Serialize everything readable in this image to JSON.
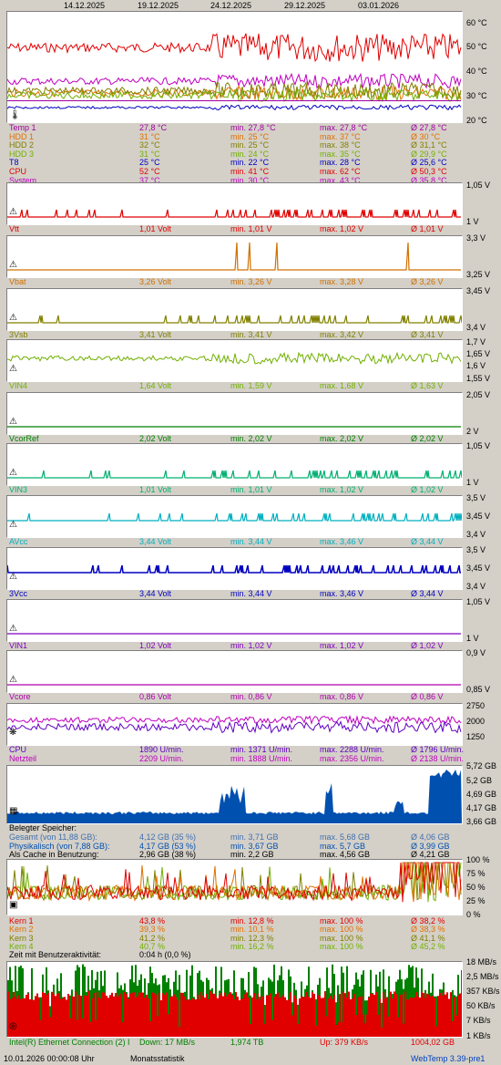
{
  "dates": [
    "14.12.2025",
    "19.12.2025",
    "24.12.2025",
    "29.12.2025",
    "03.01.2026"
  ],
  "temp": {
    "ticks": [
      "60 °C",
      "50 °C",
      "40 °C",
      "30 °C",
      "20 °C"
    ],
    "rows": [
      {
        "name": "Temp 1",
        "cur": "27,8 °C",
        "min": "min. 27,8 °C",
        "max": "max. 27,8 °C",
        "avg": "Ø 27,8 °C",
        "color": "#a000a0"
      },
      {
        "name": "HDD 1",
        "cur": "31 °C",
        "min": "min. 25 °C",
        "max": "max. 37 °C",
        "avg": "Ø 30 °C",
        "color": "#e07000"
      },
      {
        "name": "HDD 2",
        "cur": "32 °C",
        "min": "min. 25 °C",
        "max": "max. 38 °C",
        "avg": "Ø 31,1 °C",
        "color": "#808000"
      },
      {
        "name": "HDD 3",
        "cur": "31 °C",
        "min": "min. 24 °C",
        "max": "max. 35 °C",
        "avg": "Ø 29,9 °C",
        "color": "#70b000"
      },
      {
        "name": "T8",
        "cur": "25 °C",
        "min": "min. 22 °C",
        "max": "max. 28 °C",
        "avg": "Ø 25,6 °C",
        "color": "#0000c0"
      },
      {
        "name": "CPU",
        "cur": "52 °C",
        "min": "min. 41 °C",
        "max": "max. 62 °C",
        "avg": "Ø 50,3 °C",
        "color": "#e00000"
      },
      {
        "name": "System",
        "cur": "37 °C",
        "min": "min. 30 °C",
        "max": "max. 43 °C",
        "avg": "Ø 35,8 °C",
        "color": "#c000c0"
      }
    ]
  },
  "volts": [
    {
      "name": "Vtt",
      "cur": "1,01 Volt",
      "min": "min. 1,01 V",
      "max": "max. 1,02 V",
      "avg": "Ø 1,01 V",
      "color": "#e00000",
      "hi": "1,05 V",
      "lo": "1 V",
      "mid": ""
    },
    {
      "name": "Vbat",
      "cur": "3,26 Volt",
      "min": "min. 3,26 V",
      "max": "max. 3,28 V",
      "avg": "Ø 3,26 V",
      "color": "#d07000",
      "hi": "3,3 V",
      "lo": "3,25 V",
      "mid": ""
    },
    {
      "name": "3Vsb",
      "cur": "3,41 Volt",
      "min": "min. 3,41 V",
      "max": "max. 3,42 V",
      "avg": "Ø 3,41 V",
      "color": "#808000",
      "hi": "3,45 V",
      "lo": "3,4 V",
      "mid": ""
    },
    {
      "name": "VIN4",
      "cur": "1,64 Volt",
      "min": "min. 1,59 V",
      "max": "max. 1,68 V",
      "avg": "Ø 1,63 V",
      "color": "#70b000",
      "hi": "1,7 V",
      "lo": "1,55 V",
      "mid": "1,65 V|1,6 V"
    },
    {
      "name": "VcorRef",
      "cur": "2,02 Volt",
      "min": "min. 2,02 V",
      "max": "max. 2,02 V",
      "avg": "Ø 2,02 V",
      "color": "#008000",
      "hi": "2,05 V",
      "lo": "2 V",
      "mid": ""
    },
    {
      "name": "VIN3",
      "cur": "1,01 Volt",
      "min": "min. 1,01 V",
      "max": "max. 1,02 V",
      "avg": "Ø 1,02 V",
      "color": "#00b070",
      "hi": "1,05 V",
      "lo": "1 V",
      "mid": ""
    },
    {
      "name": "AVcc",
      "cur": "3,44 Volt",
      "min": "min. 3,44 V",
      "max": "max. 3,46 V",
      "avg": "Ø 3,44 V",
      "color": "#00b0c0",
      "hi": "3,5 V",
      "lo": "3,4 V",
      "mid": "3,45 V"
    },
    {
      "name": "3Vcc",
      "cur": "3,44 Volt",
      "min": "min. 3,44 V",
      "max": "max. 3,46 V",
      "avg": "Ø 3,44 V",
      "color": "#0000c0",
      "hi": "3,5 V",
      "lo": "3,4 V",
      "mid": "3,45 V"
    },
    {
      "name": "VIN1",
      "cur": "1,02 Volt",
      "min": "min. 1,02 V",
      "max": "max. 1,02 V",
      "avg": "Ø 1,02 V",
      "color": "#8000c0",
      "hi": "1,05 V",
      "lo": "1 V",
      "mid": ""
    },
    {
      "name": "Vcore",
      "cur": "0,86 Volt",
      "min": "min. 0,86 V",
      "max": "max. 0,86 V",
      "avg": "Ø 0,86 V",
      "color": "#b000b0",
      "hi": "0,9 V",
      "lo": "0,85 V",
      "mid": ""
    }
  ],
  "fans": {
    "ticks": [
      "2750",
      "2000",
      "1250"
    ],
    "rows": [
      {
        "name": "CPU",
        "cur": "1890 U/min.",
        "min": "min. 1371 U/min.",
        "max": "max. 2288 U/min.",
        "avg": "Ø 1796 U/min.",
        "color": "#6000c0"
      },
      {
        "name": "Netzteil",
        "cur": "2209 U/min.",
        "min": "min. 1888 U/min.",
        "max": "max. 2356 U/min.",
        "avg": "Ø 2138 U/min.",
        "color": "#c000c0"
      }
    ]
  },
  "memory": {
    "ticks": [
      "5,72 GB",
      "5,2 GB",
      "4,69 GB",
      "4,17 GB",
      "3,66 GB"
    ],
    "header": "Belegter Speicher:",
    "rows": [
      {
        "name": "Gesamt (von 11,88 GB):",
        "cur": "4,12 GB (35 %)",
        "min": "min. 3,71 GB",
        "max": "max. 5,68 GB",
        "avg": "Ø 4,06 GB",
        "color": "#4070b0"
      },
      {
        "name": "Physikalisch (von 7,88 GB):",
        "cur": "4,17 GB (53 %)",
        "min": "min. 3,67 GB",
        "max": "max. 5,7 GB",
        "avg": "Ø 3,99 GB",
        "color": "#0050b0"
      },
      {
        "name": "Als Cache in Benutzung:",
        "cur": "2,96 GB (38 %)",
        "min": "min. 2,2 GB",
        "max": "max. 4,56 GB",
        "avg": "Ø 4,21 GB",
        "color": "#000000"
      }
    ]
  },
  "cpu": {
    "ticks": [
      "100 %",
      "75 %",
      "50 %",
      "25 %",
      "0 %"
    ],
    "rows": [
      {
        "name": "Kern 1",
        "cur": "43,8 %",
        "min": "min. 12,8 %",
        "max": "max. 100 %",
        "avg": "Ø 38,2 %",
        "color": "#e00000"
      },
      {
        "name": "Kern 2",
        "cur": "39,3 %",
        "min": "min. 10,1 %",
        "max": "max. 100 %",
        "avg": "Ø 38,3 %",
        "color": "#e07000"
      },
      {
        "name": "Kern 3",
        "cur": "41,2 %",
        "min": "min. 12,3 %",
        "max": "max. 100 %",
        "avg": "Ø 41,1 %",
        "color": "#808000"
      },
      {
        "name": "Kern 4",
        "cur": "40,7 %",
        "min": "min. 16,2 %",
        "max": "max. 100 %",
        "avg": "Ø 45,2 %",
        "color": "#70b000"
      }
    ],
    "activity_label": "Zeit mit Benutzeraktivität:",
    "activity_value": "0:04 h (0,0 %)"
  },
  "net": {
    "ticks": [
      "18 MB/s",
      "2,5 MB/s",
      "357 KB/s",
      "50 KB/s",
      "7 KB/s",
      "1 KB/s"
    ],
    "adapter": "Intel(R) Ethernet Connection (2) I",
    "down": "Down: 17 MB/s",
    "down_total": "1,974 TB",
    "up": "Up: 379 KB/s",
    "up_total": "1004,02 GB",
    "down_color": "#008000",
    "up_color": "#e00000"
  },
  "footer": {
    "timestamp": "10.01.2026 00:00:08 Uhr",
    "mode": "Monatsstatistik",
    "version": "WebTemp 3.39-pre1"
  }
}
